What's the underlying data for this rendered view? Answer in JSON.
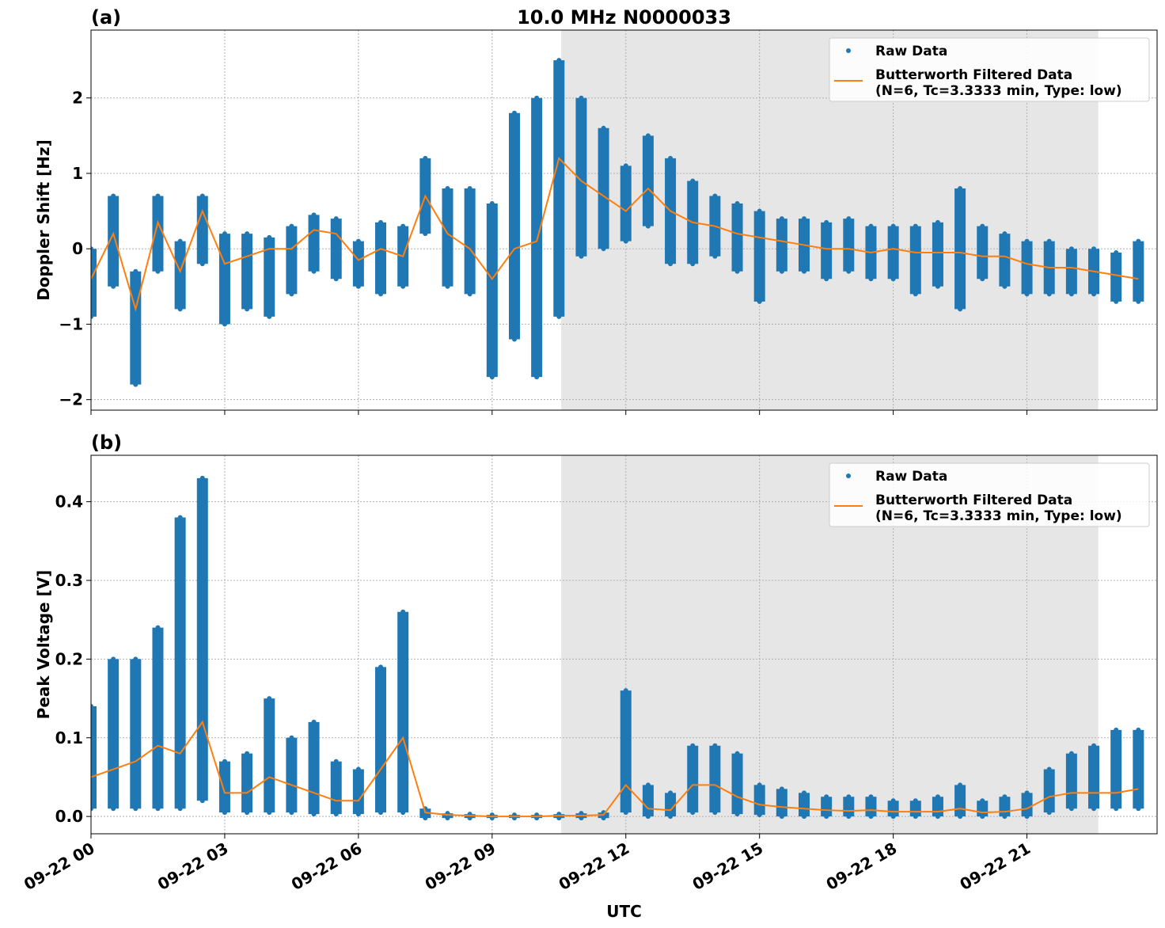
{
  "chart_data": [
    {
      "type": "line",
      "title": "10.0 MHz N0000033",
      "panel_label": "(a)",
      "ylabel": "Doppler Shift [Hz]",
      "xlim": [
        0,
        23.92
      ],
      "ylim": [
        -2.14,
        2.9
      ],
      "yticks": [
        {
          "value": -2,
          "label": "−2"
        },
        {
          "value": -1,
          "label": "−1"
        },
        0,
        1,
        2
      ],
      "grid": true,
      "shade": [
        10.55,
        22.6
      ],
      "legend": "upper right",
      "x": [
        0,
        0.5,
        1,
        1.5,
        2,
        2.5,
        3,
        3.5,
        4,
        4.5,
        5,
        5.5,
        6,
        6.5,
        7,
        7.5,
        8,
        8.5,
        9,
        9.5,
        10,
        10.5,
        11,
        11.5,
        12,
        12.5,
        13,
        13.5,
        14,
        14.5,
        15,
        15.5,
        16,
        16.5,
        17,
        17.5,
        18,
        18.5,
        19,
        19.5,
        20,
        20.5,
        21,
        21.5,
        22,
        22.5,
        23,
        23.5
      ],
      "series": [
        {
          "name": "Raw Data",
          "color": "#1f77b4",
          "style": "dots",
          "values": [
            0.0,
            0.7,
            -0.3,
            0.7,
            0.1,
            0.7,
            0.2,
            0.2,
            0.15,
            0.3,
            0.45,
            0.4,
            0.1,
            0.35,
            0.3,
            1.2,
            0.8,
            0.8,
            0.6,
            1.8,
            2.0,
            2.5,
            2.0,
            1.6,
            1.1,
            1.5,
            1.2,
            0.9,
            0.7,
            0.6,
            0.5,
            0.4,
            0.4,
            0.35,
            0.4,
            0.3,
            0.3,
            0.3,
            0.35,
            0.8,
            0.3,
            0.2,
            0.1,
            0.1,
            0.0,
            0.0,
            -0.05,
            0.1
          ],
          "low": [
            -0.9,
            -0.5,
            -1.8,
            -0.3,
            -0.8,
            -0.2,
            -1.0,
            -0.8,
            -0.9,
            -0.6,
            -0.3,
            -0.4,
            -0.5,
            -0.6,
            -0.5,
            0.2,
            -0.5,
            -0.6,
            -1.7,
            -1.2,
            -1.7,
            -0.9,
            -0.1,
            0.0,
            0.1,
            0.3,
            -0.2,
            -0.2,
            -0.1,
            -0.3,
            -0.7,
            -0.3,
            -0.3,
            -0.4,
            -0.3,
            -0.4,
            -0.4,
            -0.6,
            -0.5,
            -0.8,
            -0.4,
            -0.5,
            -0.6,
            -0.6,
            -0.6,
            -0.6,
            -0.7,
            -0.7
          ]
        },
        {
          "name": "Butterworth Filtered Data\n(N=6, Tc=3.3333 min, Type: low)",
          "color": "#ff7f0e",
          "style": "line",
          "values": [
            -0.4,
            0.2,
            -0.8,
            0.35,
            -0.3,
            0.5,
            -0.2,
            -0.1,
            0.0,
            0.0,
            0.25,
            0.2,
            -0.15,
            0.0,
            -0.1,
            0.7,
            0.2,
            0.0,
            -0.4,
            0.0,
            0.1,
            1.2,
            0.9,
            0.7,
            0.5,
            0.8,
            0.5,
            0.35,
            0.3,
            0.2,
            0.15,
            0.1,
            0.05,
            0.0,
            0.0,
            -0.05,
            0.0,
            -0.05,
            -0.05,
            -0.05,
            -0.1,
            -0.1,
            -0.2,
            -0.25,
            -0.25,
            -0.3,
            -0.35,
            -0.4
          ]
        }
      ]
    },
    {
      "type": "line",
      "panel_label": "(b)",
      "ylabel": "Peak Voltage [V]",
      "xlabel": "UTC",
      "xlim": [
        0,
        23.92
      ],
      "ylim": [
        -0.022,
        0.459
      ],
      "yticks": [
        {
          "value": 0,
          "label": "0.0"
        },
        0.1,
        0.2,
        0.3,
        0.4
      ],
      "xticks": [
        {
          "value": 0,
          "label": "09-22 00"
        },
        {
          "value": 3,
          "label": "09-22 03"
        },
        {
          "value": 6,
          "label": "09-22 06"
        },
        {
          "value": 9,
          "label": "09-22 09"
        },
        {
          "value": 12,
          "label": "09-22 12"
        },
        {
          "value": 15,
          "label": "09-22 15"
        },
        {
          "value": 18,
          "label": "09-22 18"
        },
        {
          "value": 21,
          "label": "09-22 21"
        }
      ],
      "grid": true,
      "shade": [
        10.55,
        22.6
      ],
      "legend": "upper right",
      "x": [
        0,
        0.5,
        1,
        1.5,
        2,
        2.5,
        3,
        3.5,
        4,
        4.5,
        5,
        5.5,
        6,
        6.5,
        7,
        7.5,
        8,
        8.5,
        9,
        9.5,
        10,
        10.5,
        11,
        11.5,
        12,
        12.5,
        13,
        13.5,
        14,
        14.5,
        15,
        15.5,
        16,
        16.5,
        17,
        17.5,
        18,
        18.5,
        19,
        19.5,
        20,
        20.5,
        21,
        21.5,
        22,
        22.5,
        23,
        23.5
      ],
      "series": [
        {
          "name": "Raw Data",
          "color": "#1f77b4",
          "style": "dots",
          "values": [
            0.14,
            0.2,
            0.2,
            0.24,
            0.38,
            0.43,
            0.07,
            0.08,
            0.15,
            0.1,
            0.12,
            0.07,
            0.06,
            0.19,
            0.26,
            0.01,
            0.004,
            0.003,
            0.002,
            0.002,
            0.002,
            0.003,
            0.004,
            0.005,
            0.16,
            0.04,
            0.03,
            0.09,
            0.09,
            0.08,
            0.04,
            0.035,
            0.03,
            0.025,
            0.025,
            0.025,
            0.02,
            0.02,
            0.025,
            0.04,
            0.02,
            0.025,
            0.03,
            0.06,
            0.08,
            0.09,
            0.11,
            0.11
          ],
          "low": [
            0.01,
            0.01,
            0.01,
            0.01,
            0.01,
            0.02,
            0.005,
            0.005,
            0.005,
            0.005,
            0.003,
            0.003,
            0.003,
            0.005,
            0.005,
            -0.002,
            -0.002,
            -0.002,
            -0.002,
            -0.002,
            -0.002,
            -0.002,
            -0.002,
            -0.002,
            0.005,
            0.0,
            0.0,
            0.005,
            0.005,
            0.003,
            0.002,
            0.0,
            0.0,
            0.0,
            0.0,
            0.0,
            0.0,
            0.0,
            0.0,
            0.0,
            0.0,
            0.0,
            0.0,
            0.005,
            0.01,
            0.01,
            0.01,
            0.01
          ]
        },
        {
          "name": "Butterworth Filtered Data\n(N=6, Tc=3.3333 min, Type: low)",
          "color": "#ff7f0e",
          "style": "line",
          "values": [
            0.05,
            0.06,
            0.07,
            0.09,
            0.08,
            0.12,
            0.03,
            0.03,
            0.05,
            0.04,
            0.03,
            0.02,
            0.02,
            0.06,
            0.1,
            0.005,
            0.002,
            0.001,
            0.0,
            0.0,
            0.0,
            0.001,
            0.001,
            0.002,
            0.04,
            0.01,
            0.008,
            0.04,
            0.04,
            0.025,
            0.015,
            0.012,
            0.01,
            0.008,
            0.007,
            0.008,
            0.006,
            0.006,
            0.006,
            0.01,
            0.005,
            0.006,
            0.01,
            0.025,
            0.03,
            0.03,
            0.03,
            0.035
          ]
        }
      ]
    }
  ]
}
